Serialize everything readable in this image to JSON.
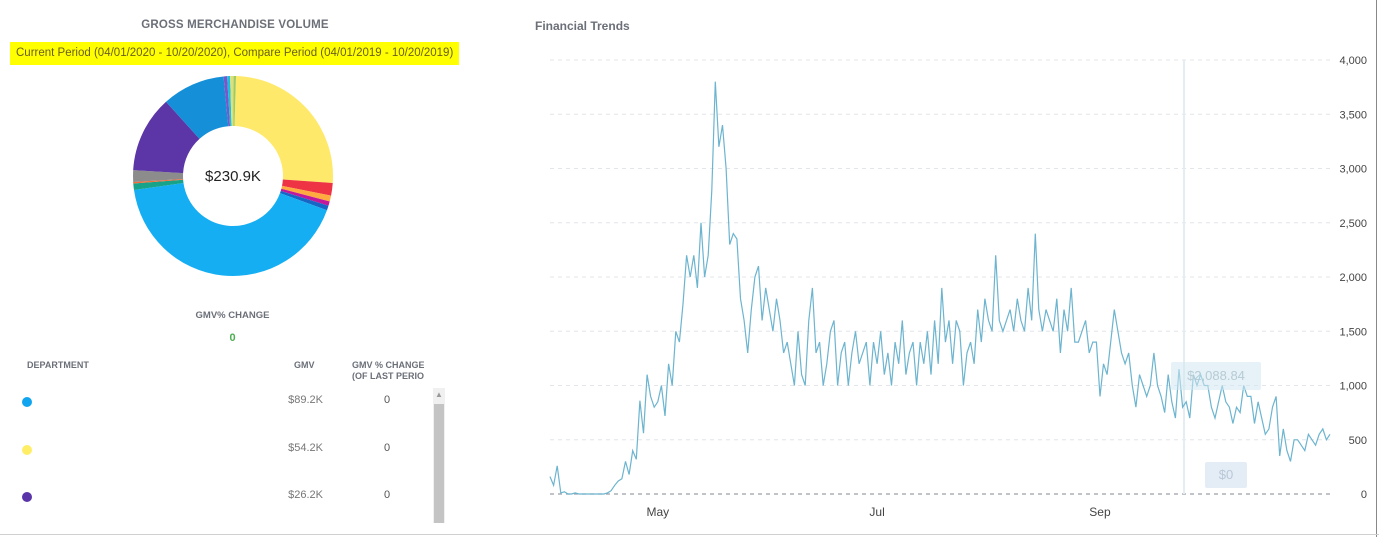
{
  "gmv_panel": {
    "title": "GROSS MERCHANDISE VOLUME",
    "period_text": "Current Period (04/01/2020 - 10/20/2020), Compare Period (04/01/2019 - 10/20/2019)",
    "total": "$230.9K",
    "gmv_change_label": "GMV% CHANGE",
    "gmv_change_value": "0"
  },
  "table": {
    "headers": {
      "department": "DEPARTMENT",
      "gmv": "GMV",
      "change_line1": "GMV % CHANGE",
      "change_line2": "(OF LAST PERIOD"
    },
    "rows": [
      {
        "color": "#12a5ef",
        "gmv": "$89.2K",
        "change": "0"
      },
      {
        "color": "#ffee66",
        "gmv": "$54.2K",
        "change": "0"
      },
      {
        "color": "#5a35a8",
        "gmv": "$26.2K",
        "change": "0"
      }
    ]
  },
  "trends": {
    "title": "Financial Trends",
    "tooltip_value": "$2,088.84",
    "tooltip_zero": "$0"
  },
  "donut_slices": [
    {
      "name": "sky blue",
      "value": 89.2,
      "color": "#16aef2"
    },
    {
      "name": "light yellow",
      "value": 54.2,
      "color": "#ffe96a"
    },
    {
      "name": "purple",
      "value": 26.2,
      "color": "#5c35a6"
    },
    {
      "name": "deep blue",
      "value": 21.5,
      "color": "#1590d8"
    },
    {
      "name": "gray",
      "value": 4.0,
      "color": "#8c8c8c"
    },
    {
      "name": "red",
      "value": 4.3,
      "color": "#ee3344"
    },
    {
      "name": "orange",
      "value": 2.0,
      "color": "#ffab40"
    },
    {
      "name": "teal",
      "value": 2.2,
      "color": "#16a38a"
    },
    {
      "name": "magenta",
      "value": 1.5,
      "color": "#c2189b"
    },
    {
      "name": "blue",
      "value": 1.6,
      "color": "#1766c6"
    },
    {
      "name": "khaki",
      "value": 1.2,
      "color": "#dde07a"
    },
    {
      "name": "orange-red",
      "value": 0.5,
      "color": "#f36d3b"
    },
    {
      "name": "cyan",
      "value": 1.0,
      "color": "#19c0e0"
    },
    {
      "name": "violet",
      "value": 1.2,
      "color": "#7b56c8"
    },
    {
      "name": "lime",
      "value": 0.8,
      "color": "#9ccc65"
    }
  ],
  "chart_data": {
    "type": "line",
    "title": "Financial Trends",
    "y_ticks": [
      "0",
      "500",
      "1,000",
      "1,500",
      "2,000",
      "2,500",
      "3,000",
      "3,500",
      "4,000"
    ],
    "ylim": [
      0,
      4000
    ],
    "x_ticks": [
      {
        "label": "May",
        "index": 30
      },
      {
        "label": "Jul",
        "index": 91
      },
      {
        "label": "Sep",
        "index": 153
      }
    ],
    "line_color": "#6cb4cf",
    "grid": true,
    "series": [
      {
        "values": [
          160,
          80,
          260,
          10,
          20,
          0,
          0,
          10,
          0,
          0,
          0,
          0,
          0,
          0,
          0,
          0,
          10,
          30,
          80,
          120,
          140,
          300,
          180,
          400,
          320,
          860,
          560,
          1100,
          900,
          800,
          850,
          1000,
          720,
          1200,
          1000,
          1500,
          1400,
          1750,
          2200,
          2000,
          2200,
          1900,
          2500,
          2000,
          2200,
          2800,
          3800,
          3200,
          3400,
          3000,
          2300,
          2400,
          2350,
          1800,
          1600,
          1300,
          1700,
          2000,
          2100,
          1600,
          1900,
          1700,
          1500,
          1800,
          1600,
          1300,
          1400,
          1200,
          1000,
          1500,
          1100,
          1000,
          1600,
          1900,
          1300,
          1400,
          1000,
          1200,
          1500,
          1600,
          1000,
          1300,
          1400,
          1000,
          1300,
          1500,
          1200,
          1300,
          1400,
          1000,
          1400,
          1200,
          1500,
          1100,
          1300,
          1000,
          1400,
          1200,
          1600,
          1100,
          1300,
          1400,
          1000,
          1400,
          1200,
          1500,
          1100,
          1600,
          1200,
          1900,
          1400,
          1600,
          1200,
          1600,
          1500,
          1000,
          1300,
          1400,
          1200,
          1700,
          1400,
          1800,
          1600,
          1500,
          2200,
          1600,
          1500,
          1600,
          1700,
          1500,
          1800,
          1600,
          1500,
          1900,
          1600,
          2400,
          1700,
          1500,
          1700,
          1600,
          1500,
          1800,
          1300,
          1700,
          1500,
          1900,
          1400,
          1400,
          1500,
          1600,
          1300,
          1400,
          1400,
          900,
          1200,
          1100,
          1400,
          1700,
          1500,
          1300,
          1200,
          1300,
          1000,
          800,
          1100,
          1000,
          900,
          1000,
          1300,
          1000,
          900,
          750,
          1100,
          850,
          700,
          1150,
          800,
          850,
          700,
          1100,
          1000,
          1100,
          1000,
          1000,
          800,
          700,
          850,
          1000,
          850,
          800,
          650,
          800,
          750,
          1000,
          900,
          900,
          650,
          850,
          700,
          550,
          600,
          800,
          900,
          350,
          600,
          400,
          300,
          500,
          500,
          450,
          400,
          550,
          500,
          450,
          550,
          600,
          500,
          550
        ]
      }
    ]
  }
}
